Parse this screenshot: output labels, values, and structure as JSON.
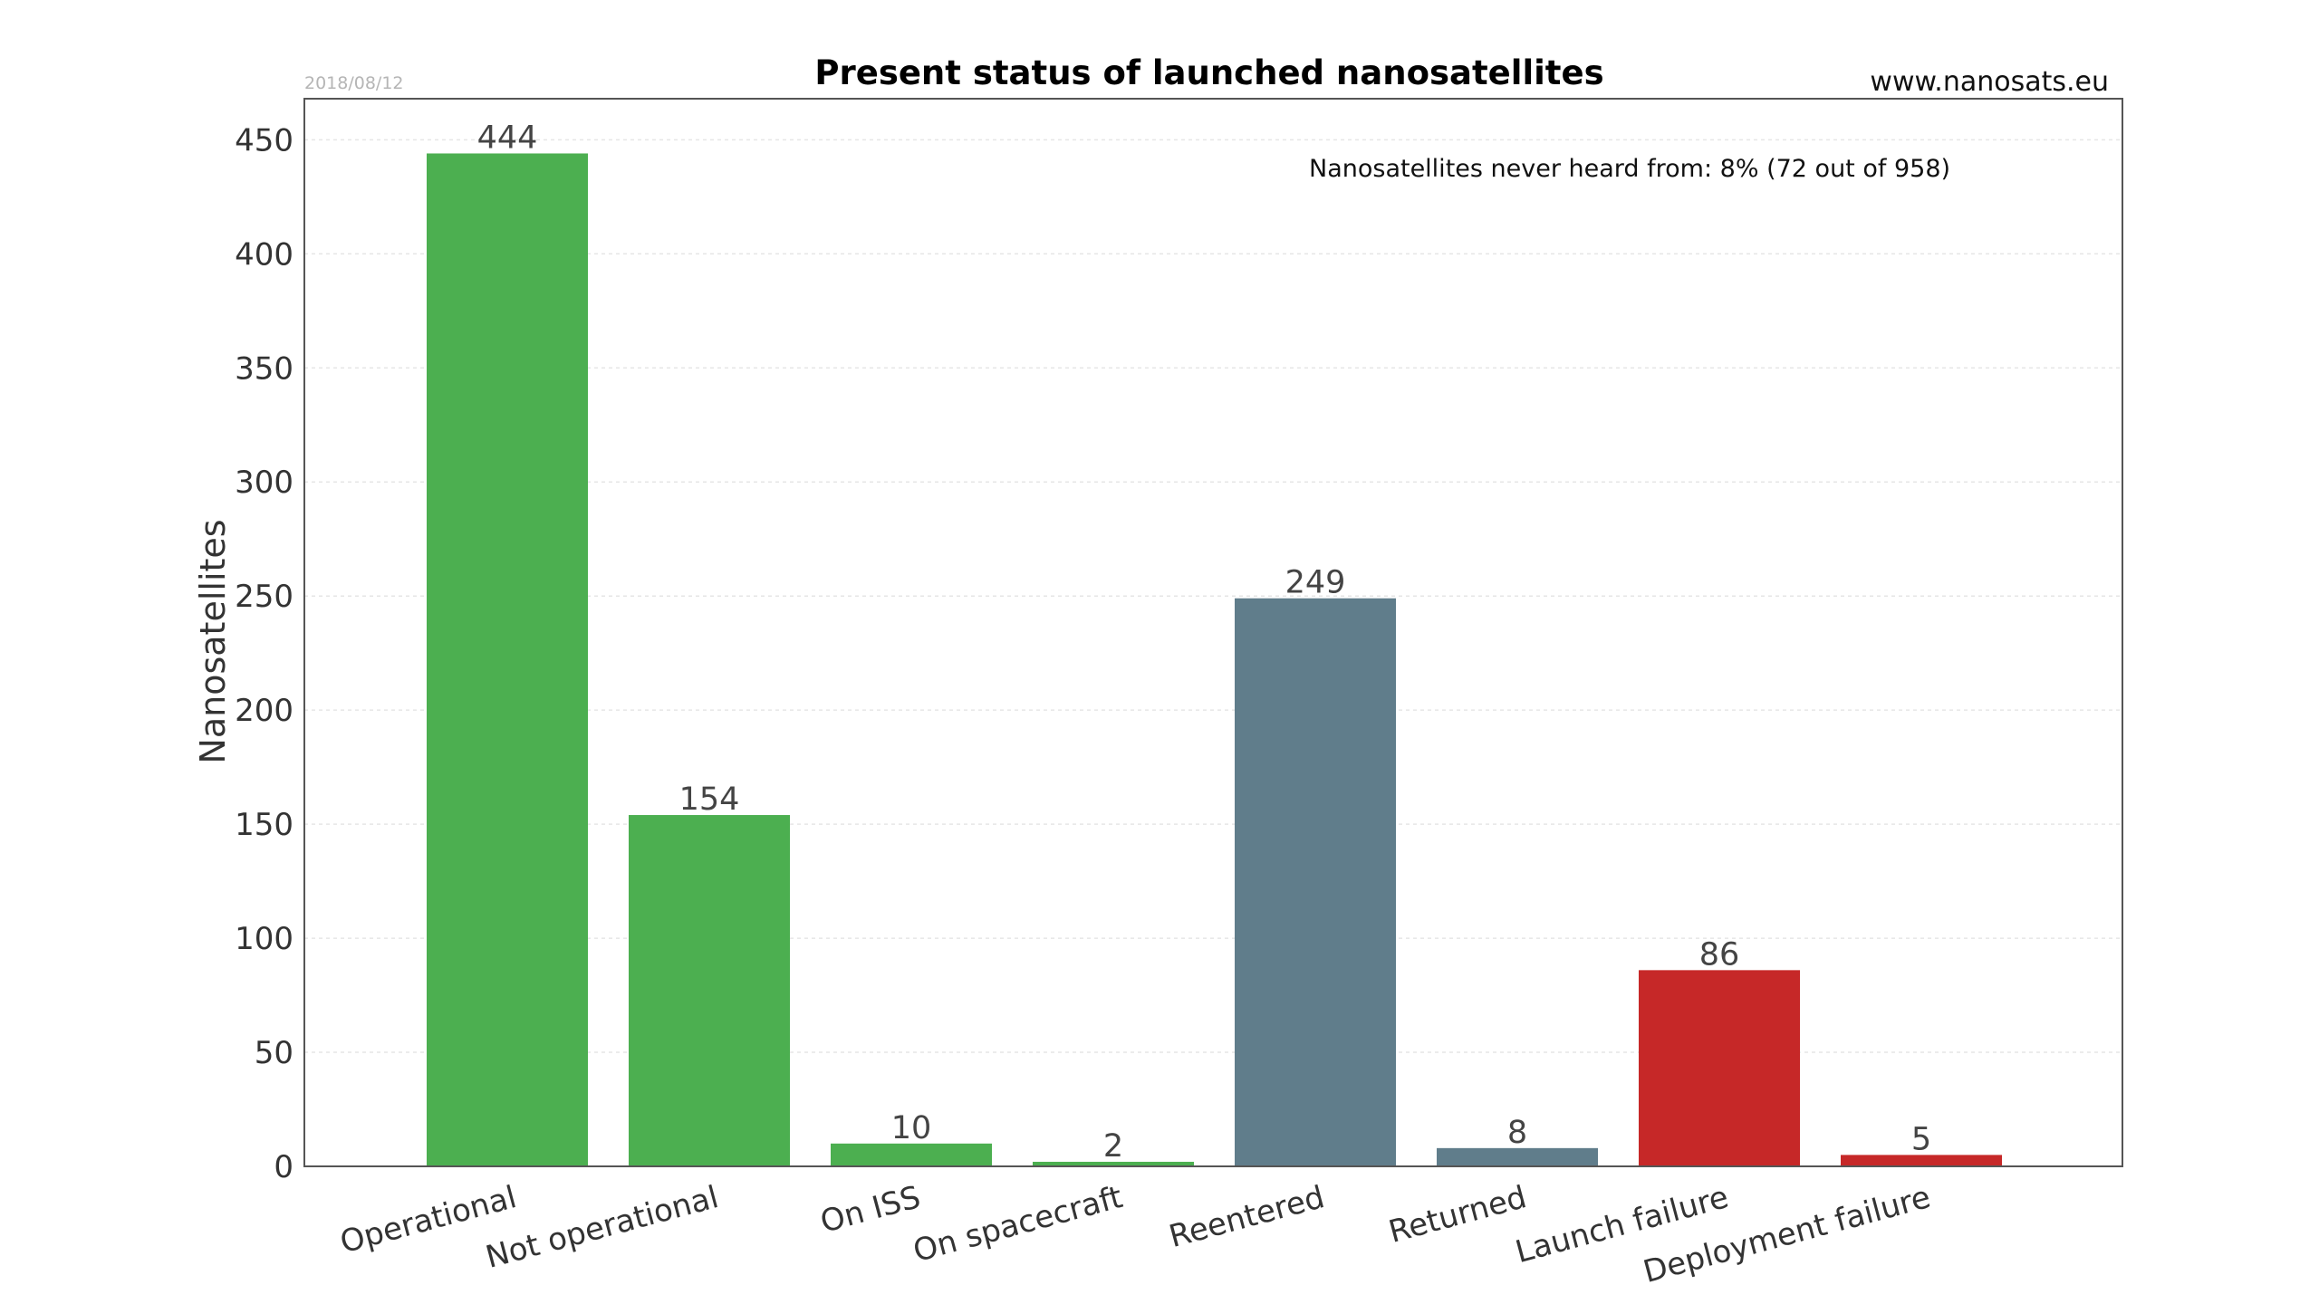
{
  "date": "2018/08/12",
  "website": "www.nanosats.eu",
  "note": "Nanosatellites never heard from: 8% (72 out of 958)",
  "chart_data": {
    "type": "bar",
    "title": "Present status of launched nanosatellites",
    "xlabel": "",
    "ylabel": "Nanosatellites",
    "ylim": [
      0,
      468
    ],
    "yticks": [
      0,
      50,
      100,
      150,
      200,
      250,
      300,
      350,
      400,
      450
    ],
    "grid": "horizontal dashed",
    "categories": [
      "Operational",
      "Not operational",
      "On ISS",
      "On spacecraft",
      "Reentered",
      "Returned",
      "Launch failure",
      "Deployment failure"
    ],
    "values": [
      444,
      154,
      10,
      2,
      249,
      8,
      86,
      5
    ],
    "bar_colors": [
      "#4caf50",
      "#4caf50",
      "#4caf50",
      "#4caf50",
      "#607d8b",
      "#607d8b",
      "#c62828",
      "#c62828"
    ]
  }
}
